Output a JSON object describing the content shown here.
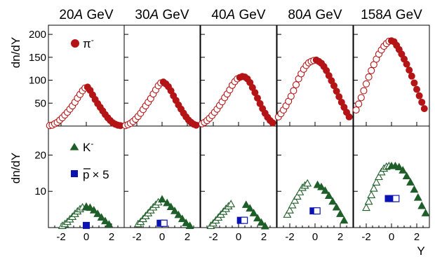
{
  "colors": {
    "pi": "#b41416",
    "K": "#1e5e28",
    "p": "#0b12b2"
  },
  "labels": {
    "ylabel_top": "dn/dY",
    "ylabel_bottom": "dn/dY",
    "xlabel": "Y",
    "legend_pi": "π",
    "legend_pi_sup": "-",
    "legend_K": "K",
    "legend_K_sup": "-",
    "legend_p": "p",
    "legend_p_suffix": "× 5"
  },
  "chart_data": {
    "type": "scatter",
    "energies": [
      {
        "num": "20",
        "unit": "A",
        "gev": " GeV"
      },
      {
        "num": "30",
        "unit": "A",
        "gev": " GeV"
      },
      {
        "num": "40",
        "unit": "A",
        "gev": " GeV"
      },
      {
        "num": "80",
        "unit": "A",
        "gev": " GeV"
      },
      {
        "num": "158",
        "unit": "A",
        "gev": " GeV"
      }
    ],
    "x_ticks": [
      "-2",
      "0",
      "2"
    ],
    "x_tick_values": [
      -2,
      0,
      2
    ],
    "xlim": [
      -3.0,
      3.0
    ],
    "top_ylim": [
      0,
      220
    ],
    "top_yticks": [
      50,
      100,
      150,
      200
    ],
    "top_ytick_labels": [
      "50",
      "100",
      "150",
      "200"
    ],
    "bottom_ylim": [
      0,
      28
    ],
    "bottom_yticks": [
      10,
      20
    ],
    "bottom_ytick_labels": [
      "10",
      "20"
    ],
    "panels": [
      {
        "pi_open": [
          [
            -2.9,
            1
          ],
          [
            -2.7,
            2
          ],
          [
            -2.5,
            5
          ],
          [
            -2.3,
            8
          ],
          [
            -2.1,
            13
          ],
          [
            -1.9,
            18
          ],
          [
            -1.7,
            24
          ],
          [
            -1.5,
            30
          ],
          [
            -1.3,
            37
          ],
          [
            -1.1,
            44
          ],
          [
            -0.9,
            52
          ],
          [
            -0.7,
            61
          ],
          [
            -0.5,
            69
          ],
          [
            -0.3,
            77
          ],
          [
            -0.1,
            83
          ]
        ],
        "pi_filled": [
          [
            0.1,
            85
          ],
          [
            0.3,
            78
          ],
          [
            0.5,
            68
          ],
          [
            0.7,
            58
          ],
          [
            0.9,
            49
          ],
          [
            1.1,
            41
          ],
          [
            1.3,
            33
          ],
          [
            1.5,
            25
          ],
          [
            1.7,
            18
          ],
          [
            1.9,
            12
          ],
          [
            2.1,
            7
          ],
          [
            2.3,
            4
          ],
          [
            2.5,
            2
          ],
          [
            2.7,
            1
          ]
        ],
        "K_open": [
          [
            -1.9,
            0.5
          ],
          [
            -1.7,
            1.0
          ],
          [
            -1.5,
            1.6
          ],
          [
            -1.3,
            2.3
          ],
          [
            -1.1,
            3.0
          ],
          [
            -0.9,
            3.8
          ],
          [
            -0.7,
            4.5
          ],
          [
            -0.5,
            5.1
          ],
          [
            -0.3,
            5.6
          ]
        ],
        "K_filled": [
          [
            0.0,
            5.8
          ],
          [
            0.3,
            5.5
          ],
          [
            0.6,
            4.8
          ],
          [
            0.9,
            3.8
          ],
          [
            1.2,
            2.8
          ],
          [
            1.5,
            1.8
          ],
          [
            1.8,
            0.9
          ]
        ],
        "p_open": [],
        "p_filled": [
          [
            0.0,
            0.6
          ]
        ],
        "p_half": []
      },
      {
        "pi_open": [
          [
            -2.9,
            1
          ],
          [
            -2.7,
            3
          ],
          [
            -2.5,
            6
          ],
          [
            -2.3,
            10
          ],
          [
            -2.1,
            15
          ],
          [
            -1.9,
            21
          ],
          [
            -1.7,
            28
          ],
          [
            -1.5,
            36
          ],
          [
            -1.3,
            44
          ],
          [
            -1.1,
            52
          ],
          [
            -0.9,
            60
          ],
          [
            -0.7,
            70
          ],
          [
            -0.5,
            79
          ],
          [
            -0.3,
            88
          ],
          [
            -0.1,
            94
          ]
        ],
        "pi_filled": [
          [
            0.1,
            96
          ],
          [
            0.3,
            92
          ],
          [
            0.5,
            86
          ],
          [
            0.7,
            77
          ],
          [
            0.9,
            66
          ],
          [
            1.1,
            56
          ],
          [
            1.3,
            46
          ],
          [
            1.5,
            37
          ],
          [
            1.7,
            28
          ],
          [
            1.9,
            20
          ],
          [
            2.1,
            13
          ],
          [
            2.3,
            8
          ],
          [
            2.5,
            4
          ],
          [
            2.7,
            2
          ]
        ],
        "K_open": [
          [
            -1.9,
            1.0
          ],
          [
            -1.7,
            1.6
          ],
          [
            -1.5,
            2.4
          ],
          [
            -1.3,
            3.2
          ],
          [
            -1.1,
            4.0
          ],
          [
            -0.9,
            4.8
          ],
          [
            -0.7,
            5.6
          ],
          [
            -0.5,
            6.3
          ],
          [
            -0.3,
            7.0
          ]
        ],
        "K_filled": [
          [
            0.0,
            7.8
          ],
          [
            0.4,
            6.8
          ],
          [
            0.7,
            5.7
          ],
          [
            1.0,
            4.6
          ],
          [
            1.3,
            3.5
          ],
          [
            1.6,
            2.4
          ],
          [
            1.9,
            1.3
          ],
          [
            2.2,
            0.5
          ]
        ],
        "p_open": [
          [
            0.15,
            1.2
          ]
        ],
        "p_filled": [
          [
            -0.15,
            1.2
          ]
        ],
        "p_half": []
      },
      {
        "pi_open": [
          [
            -2.9,
            5
          ],
          [
            -2.7,
            8
          ],
          [
            -2.5,
            12
          ],
          [
            -2.3,
            17
          ],
          [
            -2.1,
            23
          ],
          [
            -1.9,
            30
          ],
          [
            -1.7,
            37
          ],
          [
            -1.5,
            45
          ],
          [
            -1.3,
            53
          ],
          [
            -1.1,
            62
          ],
          [
            -0.9,
            70
          ],
          [
            -0.7,
            79
          ],
          [
            -0.5,
            89
          ],
          [
            -0.3,
            97
          ],
          [
            -0.1,
            103
          ]
        ],
        "pi_filled": [
          [
            0.1,
            106
          ],
          [
            0.3,
            108
          ],
          [
            0.5,
            107
          ],
          [
            0.7,
            103
          ],
          [
            0.9,
            95
          ],
          [
            1.1,
            84
          ],
          [
            1.3,
            73
          ],
          [
            1.5,
            61
          ],
          [
            1.7,
            49
          ],
          [
            1.9,
            38
          ],
          [
            2.1,
            28
          ],
          [
            2.3,
            19
          ],
          [
            2.5,
            12
          ],
          [
            2.7,
            7
          ]
        ],
        "K_open": [
          [
            -2.2,
            0.5
          ],
          [
            -2.0,
            1.2
          ],
          [
            -1.8,
            2.0
          ],
          [
            -1.6,
            2.8
          ],
          [
            -1.4,
            3.6
          ],
          [
            -1.2,
            4.4
          ],
          [
            -1.0,
            5.2
          ],
          [
            -0.8,
            5.9
          ],
          [
            -0.6,
            6.5
          ]
        ],
        "K_filled": [
          [
            0.6,
            6.3
          ],
          [
            0.9,
            5.3
          ],
          [
            1.2,
            4.0
          ],
          [
            1.5,
            2.6
          ],
          [
            1.8,
            1.4
          ],
          [
            2.1,
            0.4
          ]
        ],
        "p_open": [
          [
            0.45,
            2.0
          ]
        ],
        "p_filled": [
          [
            0.15,
            2.0
          ]
        ],
        "p_half": []
      },
      {
        "pi_open": [
          [
            -2.9,
            20
          ],
          [
            -2.7,
            27
          ],
          [
            -2.5,
            35
          ],
          [
            -2.3,
            44
          ],
          [
            -2.1,
            54
          ],
          [
            -1.9,
            65
          ],
          [
            -1.7,
            77
          ],
          [
            -1.5,
            90
          ],
          [
            -1.3,
            103
          ],
          [
            -1.1,
            114
          ],
          [
            -0.9,
            124
          ],
          [
            -0.7,
            132
          ],
          [
            -0.5,
            138
          ],
          [
            -0.3,
            141
          ],
          [
            -0.1,
            143
          ]
        ],
        "pi_filled": [
          [
            0.1,
            144
          ],
          [
            0.3,
            141
          ],
          [
            0.5,
            137
          ],
          [
            0.7,
            130
          ],
          [
            0.9,
            121
          ],
          [
            1.1,
            110
          ],
          [
            1.3,
            99
          ],
          [
            1.5,
            88
          ],
          [
            1.7,
            76
          ],
          [
            1.9,
            64
          ],
          [
            2.1,
            52
          ],
          [
            2.3,
            41
          ],
          [
            2.5,
            30
          ],
          [
            2.7,
            20
          ]
        ],
        "K_open": [
          [
            -2.2,
            3.6
          ],
          [
            -2.0,
            4.8
          ],
          [
            -1.8,
            6.2
          ],
          [
            -1.6,
            7.5
          ],
          [
            -1.4,
            8.6
          ],
          [
            -1.2,
            9.8
          ],
          [
            -1.0,
            11.0
          ],
          [
            -0.8,
            11.6
          ],
          [
            -0.6,
            12.2
          ]
        ],
        "K_filled": [
          [
            0.2,
            11.8
          ],
          [
            0.5,
            11.2
          ],
          [
            0.8,
            10.2
          ],
          [
            1.1,
            8.8
          ],
          [
            1.4,
            7.2
          ],
          [
            1.7,
            5.6
          ],
          [
            2.0,
            3.8
          ],
          [
            2.3,
            2.0
          ]
        ],
        "p_open": [
          [
            0.15,
            4.6
          ]
        ],
        "p_filled": [
          [
            -0.15,
            4.6
          ]
        ],
        "p_half": []
      },
      {
        "pi_open": [
          [
            -2.8,
            35
          ],
          [
            -2.6,
            48
          ],
          [
            -2.4,
            62
          ],
          [
            -2.2,
            77
          ],
          [
            -2.0,
            92
          ],
          [
            -1.8,
            107
          ],
          [
            -1.6,
            121
          ],
          [
            -1.4,
            134
          ],
          [
            -1.2,
            146
          ],
          [
            -1.0,
            157
          ],
          [
            -0.8,
            166
          ],
          [
            -0.6,
            174
          ],
          [
            -0.4,
            180
          ],
          [
            -0.2,
            185
          ]
        ],
        "pi_filled": [
          [
            0.0,
            186
          ],
          [
            0.2,
            184
          ],
          [
            0.4,
            176
          ],
          [
            0.6,
            167
          ],
          [
            0.8,
            157
          ],
          [
            1.0,
            146
          ],
          [
            1.2,
            135
          ],
          [
            1.4,
            122
          ],
          [
            1.6,
            109
          ],
          [
            1.8,
            94
          ],
          [
            2.0,
            80
          ],
          [
            2.2,
            66
          ],
          [
            2.4,
            52
          ],
          [
            2.6,
            38
          ]
        ],
        "K_open": [
          [
            -2.0,
            5.5
          ],
          [
            -1.8,
            7.2
          ],
          [
            -1.6,
            9.0
          ],
          [
            -1.4,
            10.8
          ],
          [
            -1.2,
            12.5
          ],
          [
            -1.0,
            14.0
          ],
          [
            -0.8,
            15.3
          ],
          [
            -0.6,
            16.3
          ],
          [
            -0.4,
            16.8
          ],
          [
            -0.2,
            17.0
          ]
        ],
        "K_filled": [
          [
            0.0,
            17.0
          ],
          [
            0.3,
            17.0
          ],
          [
            0.6,
            16.7
          ],
          [
            0.9,
            15.8
          ],
          [
            1.2,
            14.2
          ],
          [
            1.5,
            12.5
          ],
          [
            1.8,
            10.5
          ],
          [
            2.1,
            8.3
          ],
          [
            2.4,
            6.0
          ],
          [
            2.7,
            4.0
          ]
        ],
        "p_open": [
          [
            0.35,
            8.0
          ]
        ],
        "p_filled": [
          [
            -0.25,
            8.0
          ]
        ],
        "p_half": [
          [
            0.05,
            8.0
          ]
        ]
      }
    ]
  }
}
